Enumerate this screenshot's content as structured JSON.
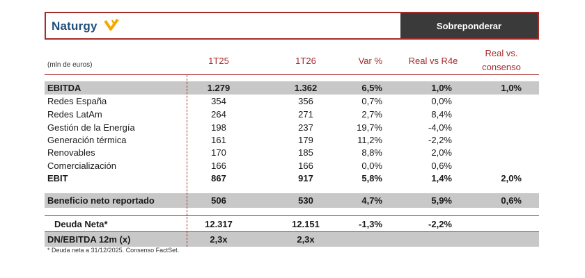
{
  "header": {
    "logo_text": "Naturgy",
    "rating": "Sobreponderar"
  },
  "table": {
    "unit_label": "(mln de euros)",
    "columns": [
      "1T25",
      "1T26",
      "Var %",
      "Real vs R4e",
      "Real vs.",
      "consenso"
    ],
    "rows": [
      {
        "label": "EBITDA",
        "v1": "1.279",
        "v2": "1.362",
        "v3": "6,5%",
        "v4": "1,0%",
        "v5": "1,0%"
      },
      {
        "label": "Redes España",
        "v1": "354",
        "v2": "356",
        "v3": "0,7%",
        "v4": "0,0%",
        "v5": ""
      },
      {
        "label": "Redes LatAm",
        "v1": "264",
        "v2": "271",
        "v3": "2,7%",
        "v4": "8,4%",
        "v5": ""
      },
      {
        "label": "Gestión de la Energía",
        "v1": "198",
        "v2": "237",
        "v3": "19,7%",
        "v4": "-4,0%",
        "v5": ""
      },
      {
        "label": "Generación térmica",
        "v1": "161",
        "v2": "179",
        "v3": "11,2%",
        "v4": "-2,2%",
        "v5": ""
      },
      {
        "label": "Renovables",
        "v1": "170",
        "v2": "185",
        "v3": "8,8%",
        "v4": "2,0%",
        "v5": ""
      },
      {
        "label": "Comercialización",
        "v1": "166",
        "v2": "166",
        "v3": "0,0%",
        "v4": "0,6%",
        "v5": ""
      },
      {
        "label": "EBIT",
        "v1": "867",
        "v2": "917",
        "v3": "5,8%",
        "v4": "1,4%",
        "v5": "2,0%"
      },
      {
        "label": "Beneficio neto reportado",
        "v1": "506",
        "v2": "530",
        "v3": "4,7%",
        "v4": "5,9%",
        "v5": "0,6%"
      },
      {
        "label": "Deuda Neta*",
        "v1": "12.317",
        "v2": "12.151",
        "v3": "-1,3%",
        "v4": "-2,2%",
        "v5": ""
      },
      {
        "label": "DN/EBITDA 12m (x)",
        "v1": "2,3x",
        "v2": "2,3x",
        "v3": "",
        "v4": "",
        "v5": ""
      }
    ],
    "footnote": "* Deuda neta a 31/12/2025. Consenso FactSet."
  },
  "colors": {
    "accent": "#a52a2a",
    "rating_bg": "#3a3a3a",
    "row_shade": "#c8c8c8",
    "logo": "#1f4e79",
    "logo_mark": "#f2a900"
  }
}
